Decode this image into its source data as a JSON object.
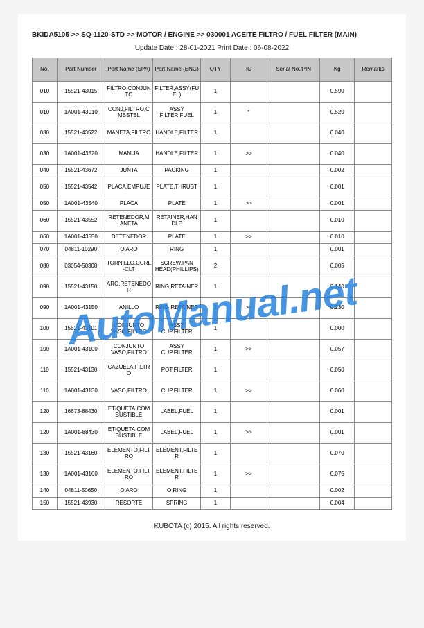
{
  "breadcrumb": "BKIDA5105 >> SQ-1120-STD >> MOTOR / ENGINE >> 030001   ACEITE FILTRO / FUEL FILTER (MAIN)",
  "dates": "Update Date : 28-01-2021   Print Date : 06-08-2022",
  "footer": "KUBOTA (c) 2015. All rights reserved.",
  "watermark": "AutoManual.net",
  "headers": {
    "no": "No.",
    "pn": "Part Number",
    "spa": "Part Name (SPA)",
    "eng": "Part Name (ENG)",
    "qty": "QTY",
    "ic": "IC",
    "sn": "Serial No./PIN",
    "kg": "Kg",
    "rem": "Remarks"
  },
  "rows": [
    {
      "no": "010",
      "pn": "15521-43015",
      "spa": "FILTRO,CONJUNTO",
      "eng": "FILTER,ASSY(FUEL)",
      "qty": "1",
      "ic": "",
      "sn": "",
      "kg": "0.590",
      "rem": "",
      "short": false
    },
    {
      "no": "010",
      "pn": "1A001-43010",
      "spa": "CONJ,FILTRO,CMBSTBL",
      "eng": "ASSY FILTER,FUEL",
      "qty": "1",
      "ic": "*",
      "sn": "",
      "kg": "0.520",
      "rem": "",
      "short": false
    },
    {
      "no": "030",
      "pn": "15521-43522",
      "spa": "MANETA,FILTRO",
      "eng": "HANDLE,FILTER",
      "qty": "1",
      "ic": "",
      "sn": "",
      "kg": "0.040",
      "rem": "",
      "short": false
    },
    {
      "no": "030",
      "pn": "1A001-43520",
      "spa": "MANIJA",
      "eng": "HANDLE,FILTER",
      "qty": "1",
      "ic": ">>",
      "sn": "",
      "kg": "0.040",
      "rem": "",
      "short": false
    },
    {
      "no": "040",
      "pn": "15521-43672",
      "spa": "JUNTA",
      "eng": "PACKING",
      "qty": "1",
      "ic": "",
      "sn": "",
      "kg": "0.002",
      "rem": "",
      "short": true
    },
    {
      "no": "050",
      "pn": "15521-43542",
      "spa": "PLACA,EMPUJE",
      "eng": "PLATE,THRUST",
      "qty": "1",
      "ic": "",
      "sn": "",
      "kg": "0.001",
      "rem": "",
      "short": false
    },
    {
      "no": "050",
      "pn": "1A001-43540",
      "spa": "PLACA",
      "eng": "PLATE",
      "qty": "1",
      "ic": ">>",
      "sn": "",
      "kg": "0.001",
      "rem": "",
      "short": true
    },
    {
      "no": "060",
      "pn": "15521-43552",
      "spa": "RETENEDOR,MANETA",
      "eng": "RETAINER,HANDLE",
      "qty": "1",
      "ic": "",
      "sn": "",
      "kg": "0.010",
      "rem": "",
      "short": false
    },
    {
      "no": "060",
      "pn": "1A001-43550",
      "spa": "DETENEDOR",
      "eng": "PLATE",
      "qty": "1",
      "ic": ">>",
      "sn": "",
      "kg": "0.010",
      "rem": "",
      "short": true
    },
    {
      "no": "070",
      "pn": "04811-10290",
      "spa": "O ARO",
      "eng": "RING",
      "qty": "1",
      "ic": "",
      "sn": "",
      "kg": "0.001",
      "rem": "",
      "short": true
    },
    {
      "no": "080",
      "pn": "03054-50308",
      "spa": "TORNILLO,CCRL-CLT",
      "eng": "SCREW,PAN HEAD(PHILLIPS)",
      "qty": "2",
      "ic": "",
      "sn": "",
      "kg": "0.005",
      "rem": "",
      "short": false
    },
    {
      "no": "090",
      "pn": "15521-43150",
      "spa": "ARO,RETENEDOR",
      "eng": "RING,RETAINER",
      "qty": "1",
      "ic": "",
      "sn": "",
      "kg": "0.140",
      "rem": "",
      "short": false
    },
    {
      "no": "090",
      "pn": "1A001-43150",
      "spa": "ANILLO",
      "eng": "RING,RETAINER",
      "qty": "1",
      "ic": ">>",
      "sn": "",
      "kg": "0.130",
      "rem": "",
      "short": false
    },
    {
      "no": "100",
      "pn": "15521-43101",
      "spa": "CONJUNTO VASO,FILTRO",
      "eng": "ASSY CUP,FILTER",
      "qty": "1",
      "ic": "",
      "sn": "",
      "kg": "0.000",
      "rem": "",
      "short": false
    },
    {
      "no": "100",
      "pn": "1A001-43100",
      "spa": "CONJUNTO VASO,FILTRO",
      "eng": "ASSY CUP,FILTER",
      "qty": "1",
      "ic": ">>",
      "sn": "",
      "kg": "0.057",
      "rem": "",
      "short": false
    },
    {
      "no": "110",
      "pn": "15521-43130",
      "spa": "CAZUELA,FILTRO",
      "eng": "POT,FILTER",
      "qty": "1",
      "ic": "",
      "sn": "",
      "kg": "0.050",
      "rem": "",
      "short": false
    },
    {
      "no": "110",
      "pn": "1A001-43130",
      "spa": "VASO,FILTRO",
      "eng": "CUP,FILTER",
      "qty": "1",
      "ic": ">>",
      "sn": "",
      "kg": "0.060",
      "rem": "",
      "short": false
    },
    {
      "no": "120",
      "pn": "16673-88430",
      "spa": "ETIQUETA,COMBUSTIBLE",
      "eng": "LABEL,FUEL",
      "qty": "1",
      "ic": "",
      "sn": "",
      "kg": "0.001",
      "rem": "",
      "short": false
    },
    {
      "no": "120",
      "pn": "1A001-88430",
      "spa": "ETIQUETA,COMBUSTIBLE",
      "eng": "LABEL,FUEL",
      "qty": "1",
      "ic": ">>",
      "sn": "",
      "kg": "0.001",
      "rem": "",
      "short": false
    },
    {
      "no": "130",
      "pn": "15521-43160",
      "spa": "ELEMENTO,FILTRO",
      "eng": "ELEMENT,FILTER",
      "qty": "1",
      "ic": "",
      "sn": "",
      "kg": "0.070",
      "rem": "",
      "short": false
    },
    {
      "no": "130",
      "pn": "1A001-43160",
      "spa": "ELEMENTO,FILTRO",
      "eng": "ELEMENT,FILTER",
      "qty": "1",
      "ic": ">>",
      "sn": "",
      "kg": "0.075",
      "rem": "",
      "short": false
    },
    {
      "no": "140",
      "pn": "04811-50650",
      "spa": "O ARO",
      "eng": "O RING",
      "qty": "1",
      "ic": "",
      "sn": "",
      "kg": "0.002",
      "rem": "",
      "short": true
    },
    {
      "no": "150",
      "pn": "15521-43930",
      "spa": "RESORTE",
      "eng": "SPRING",
      "qty": "1",
      "ic": "",
      "sn": "",
      "kg": "0.004",
      "rem": "",
      "short": true
    }
  ]
}
